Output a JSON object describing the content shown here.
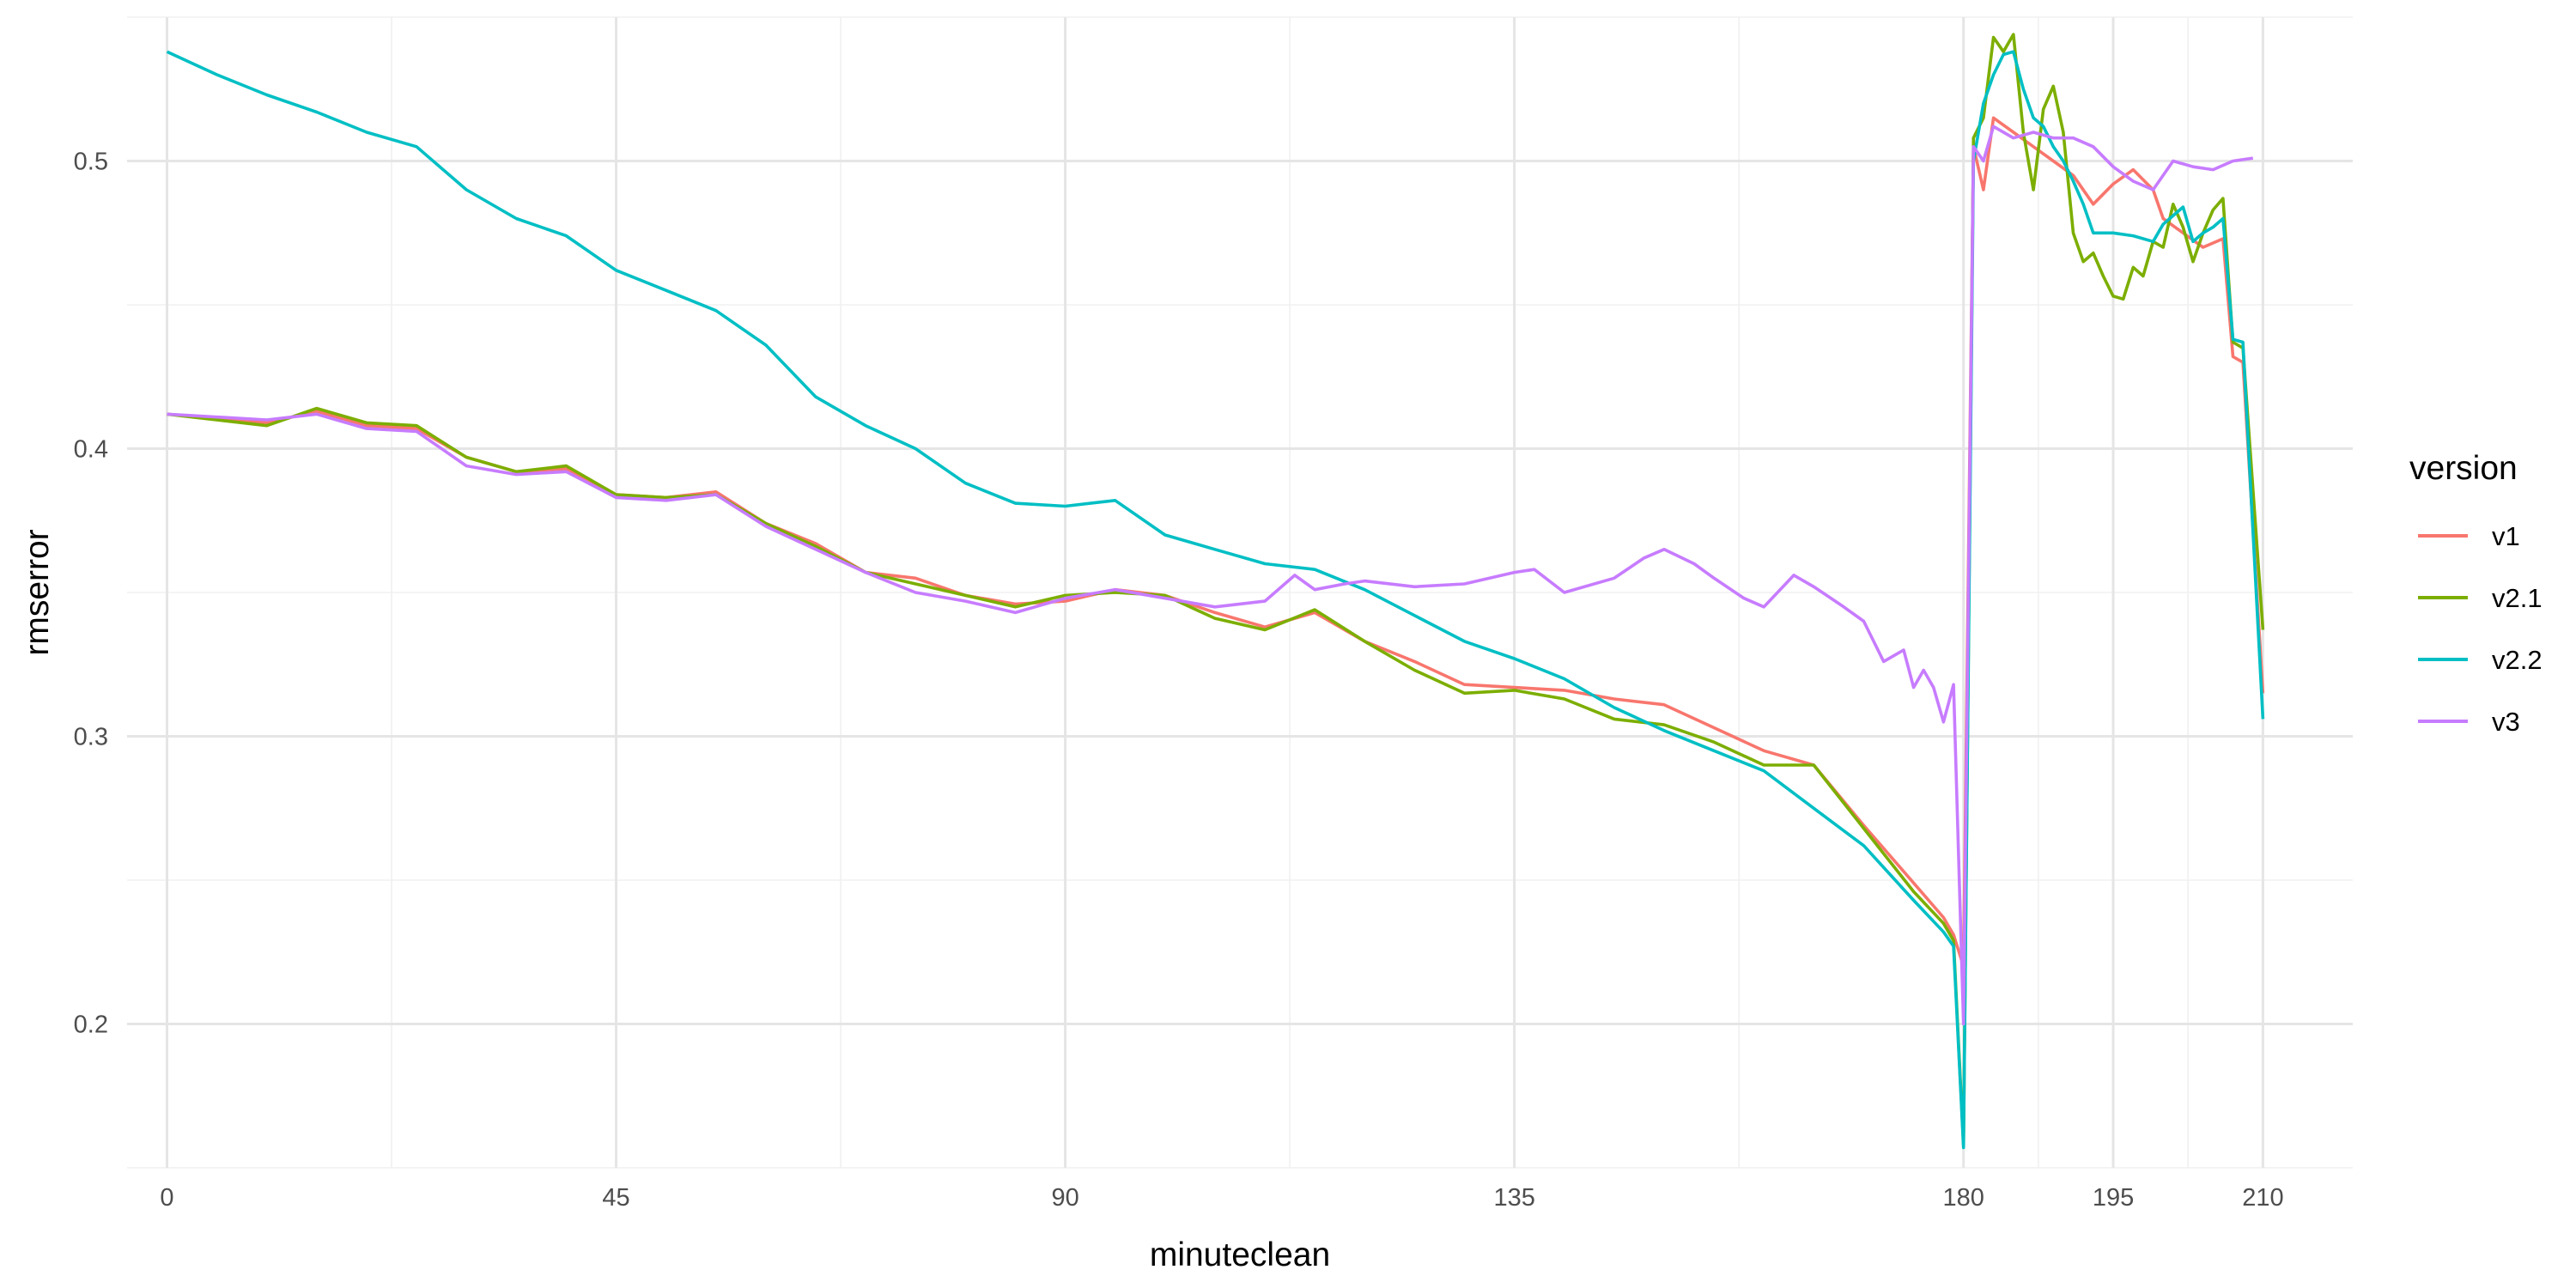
{
  "chart_data": {
    "type": "line",
    "xlabel": "minuteclean",
    "ylabel": "rmserror",
    "xlim": [
      -4,
      219
    ],
    "ylim": [
      0.15,
      0.55
    ],
    "x_ticks": [
      0,
      45,
      90,
      135,
      180,
      195,
      210
    ],
    "x_minor_ticks": [
      22.5,
      67.5,
      112.5,
      157.5,
      187.5,
      202.5
    ],
    "y_ticks": [
      0.2,
      0.3,
      0.4,
      0.5
    ],
    "y_tick_labels": [
      "0.2",
      "0.3",
      "0.4",
      "0.5"
    ],
    "grid": true,
    "legend": {
      "title": "version",
      "position": "right"
    },
    "series": [
      {
        "name": "v1",
        "color": "#F8766D",
        "x": [
          0,
          10,
          15,
          20,
          25,
          30,
          35,
          40,
          45,
          50,
          55,
          60,
          65,
          70,
          75,
          80,
          85,
          90,
          95,
          100,
          105,
          110,
          115,
          120,
          125,
          130,
          135,
          140,
          145,
          150,
          155,
          160,
          165,
          170,
          175,
          178,
          179,
          180,
          181,
          182,
          183,
          185,
          187,
          189,
          191,
          193,
          195,
          197,
          199,
          200,
          202,
          204,
          206,
          207,
          208,
          210
        ],
        "y": [
          0.412,
          0.409,
          0.413,
          0.408,
          0.407,
          0.397,
          0.392,
          0.393,
          0.384,
          0.383,
          0.385,
          0.374,
          0.367,
          0.357,
          0.355,
          0.349,
          0.346,
          0.347,
          0.351,
          0.349,
          0.343,
          0.338,
          0.343,
          0.333,
          0.326,
          0.318,
          0.317,
          0.316,
          0.313,
          0.311,
          0.303,
          0.295,
          0.29,
          0.269,
          0.249,
          0.237,
          0.231,
          0.22,
          0.505,
          0.49,
          0.515,
          0.51,
          0.505,
          0.5,
          0.495,
          0.485,
          0.492,
          0.497,
          0.49,
          0.48,
          0.475,
          0.47,
          0.473,
          0.432,
          0.43,
          0.315
        ]
      },
      {
        "name": "v2.1",
        "color": "#7CAE00",
        "x": [
          0,
          10,
          15,
          20,
          25,
          30,
          35,
          40,
          45,
          50,
          55,
          60,
          65,
          70,
          75,
          80,
          85,
          90,
          95,
          100,
          105,
          110,
          115,
          120,
          125,
          130,
          135,
          140,
          145,
          150,
          155,
          160,
          165,
          170,
          175,
          178,
          179,
          180,
          181,
          182,
          183,
          184,
          185,
          186,
          187,
          188,
          189,
          190,
          191,
          192,
          193,
          194,
          195,
          196,
          197,
          198,
          199,
          200,
          201,
          202,
          203,
          204,
          205,
          206,
          207,
          208,
          210
        ],
        "y": [
          0.412,
          0.408,
          0.414,
          0.409,
          0.408,
          0.397,
          0.392,
          0.394,
          0.384,
          0.383,
          0.384,
          0.374,
          0.366,
          0.357,
          0.353,
          0.349,
          0.345,
          0.349,
          0.35,
          0.349,
          0.341,
          0.337,
          0.344,
          0.333,
          0.323,
          0.315,
          0.316,
          0.313,
          0.306,
          0.304,
          0.298,
          0.29,
          0.29,
          0.268,
          0.246,
          0.235,
          0.229,
          0.158,
          0.508,
          0.515,
          0.543,
          0.538,
          0.544,
          0.51,
          0.49,
          0.518,
          0.526,
          0.51,
          0.475,
          0.465,
          0.468,
          0.46,
          0.453,
          0.452,
          0.463,
          0.46,
          0.472,
          0.47,
          0.485,
          0.477,
          0.465,
          0.475,
          0.483,
          0.487,
          0.437,
          0.435,
          0.337
        ]
      },
      {
        "name": "v2.2",
        "color": "#00BFC4",
        "x": [
          0,
          5,
          10,
          15,
          20,
          25,
          30,
          35,
          40,
          45,
          50,
          55,
          60,
          65,
          70,
          75,
          80,
          85,
          90,
          95,
          100,
          105,
          110,
          115,
          120,
          125,
          130,
          135,
          140,
          145,
          150,
          155,
          160,
          165,
          170,
          175,
          178,
          179,
          180,
          181,
          182,
          183,
          184,
          185,
          186,
          187,
          188,
          189,
          190,
          191,
          192,
          193,
          195,
          197,
          199,
          200,
          202,
          203,
          204,
          205,
          206,
          207,
          208,
          210
        ],
        "y": [
          0.538,
          0.53,
          0.523,
          0.517,
          0.51,
          0.505,
          0.49,
          0.48,
          0.474,
          0.462,
          0.455,
          0.448,
          0.436,
          0.418,
          0.408,
          0.4,
          0.388,
          0.381,
          0.38,
          0.382,
          0.37,
          0.365,
          0.36,
          0.358,
          0.351,
          0.342,
          0.333,
          0.327,
          0.32,
          0.31,
          0.302,
          0.295,
          0.288,
          0.275,
          0.262,
          0.243,
          0.232,
          0.227,
          0.157,
          0.5,
          0.52,
          0.53,
          0.537,
          0.538,
          0.525,
          0.515,
          0.512,
          0.505,
          0.5,
          0.493,
          0.485,
          0.475,
          0.475,
          0.474,
          0.472,
          0.478,
          0.484,
          0.472,
          0.475,
          0.477,
          0.48,
          0.438,
          0.437,
          0.306
        ]
      },
      {
        "name": "v3",
        "color": "#C77CFF",
        "x": [
          0,
          10,
          15,
          20,
          25,
          30,
          35,
          40,
          45,
          50,
          55,
          60,
          65,
          70,
          75,
          80,
          85,
          90,
          95,
          100,
          105,
          110,
          113,
          115,
          118,
          120,
          125,
          130,
          135,
          137,
          140,
          145,
          148,
          150,
          153,
          155,
          158,
          160,
          163,
          165,
          168,
          170,
          172,
          174,
          175,
          176,
          177,
          178,
          179,
          180,
          181,
          182,
          183,
          185,
          187,
          189,
          191,
          193,
          195,
          197,
          199,
          201,
          203,
          205,
          207,
          209
        ],
        "y": [
          0.412,
          0.41,
          0.412,
          0.407,
          0.406,
          0.394,
          0.391,
          0.392,
          0.383,
          0.382,
          0.384,
          0.373,
          0.365,
          0.357,
          0.35,
          0.347,
          0.343,
          0.348,
          0.351,
          0.348,
          0.345,
          0.347,
          0.356,
          0.351,
          0.353,
          0.354,
          0.352,
          0.353,
          0.357,
          0.358,
          0.35,
          0.355,
          0.362,
          0.365,
          0.36,
          0.355,
          0.348,
          0.345,
          0.356,
          0.352,
          0.345,
          0.34,
          0.326,
          0.33,
          0.317,
          0.323,
          0.317,
          0.305,
          0.318,
          0.2,
          0.505,
          0.5,
          0.512,
          0.508,
          0.51,
          0.508,
          0.508,
          0.505,
          0.498,
          0.493,
          0.49,
          0.5,
          0.498,
          0.497,
          0.5,
          0.501
        ]
      }
    ]
  }
}
